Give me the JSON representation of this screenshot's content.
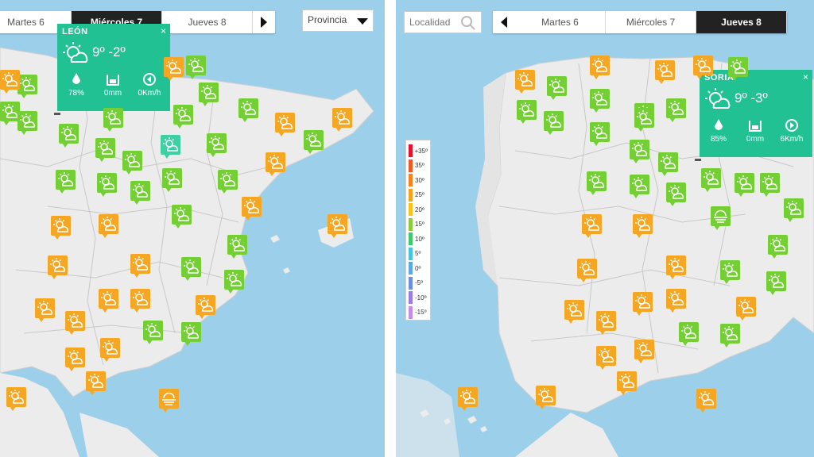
{
  "left_panel": {
    "tabs": [
      {
        "label": "Martes 6",
        "active": false
      },
      {
        "label": "Miércoles 7",
        "active": true
      },
      {
        "label": "Jueves 8",
        "active": false
      }
    ],
    "province_select": {
      "value": "Provincia"
    },
    "popup": {
      "city": "LEÓN",
      "temps": "9º -2º",
      "humidity": "78%",
      "rain": "0mm",
      "wind": "0Km/h",
      "close": "×"
    }
  },
  "right_panel": {
    "search": {
      "placeholder": "Localidad"
    },
    "tabs": [
      {
        "label": "Martes 6",
        "active": false
      },
      {
        "label": "Miércoles 7",
        "active": false
      },
      {
        "label": "Jueves 8",
        "active": true
      }
    ],
    "popup": {
      "city": "SORIA",
      "temps": "9º -3º",
      "humidity": "85%",
      "rain": "0mm",
      "wind": "6Km/h",
      "close": "×"
    },
    "legend": [
      {
        "label": "+35º",
        "color": "#e8102c"
      },
      {
        "label": "35º",
        "color": "#f05a22"
      },
      {
        "label": "30º",
        "color": "#f5821f"
      },
      {
        "label": "25º",
        "color": "#f7a21c"
      },
      {
        "label": "20º",
        "color": "#f8c21b"
      },
      {
        "label": "15º",
        "color": "#8ccc3a"
      },
      {
        "label": "10º",
        "color": "#3ec96a"
      },
      {
        "label": "5º",
        "color": "#46c3e0"
      },
      {
        "label": "0º",
        "color": "#5aa9e6"
      },
      {
        "label": "-5º",
        "color": "#6b8fe0"
      },
      {
        "label": "-10º",
        "color": "#9a7de0"
      },
      {
        "label": "-15º",
        "color": "#c58de8"
      }
    ]
  },
  "colors": {
    "sea": "#9ccfea",
    "land": "#ececec",
    "orange": "#f5a623",
    "green": "#73cf33",
    "teal": "#3ecfa3",
    "popup": "#22c193"
  },
  "icons": {
    "marker": "sun-cloud-icon",
    "fog": "fog-icon",
    "rain": "rain-cloud-icon"
  }
}
